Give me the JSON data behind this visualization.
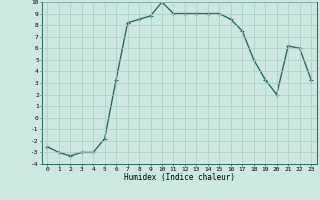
{
  "x": [
    0,
    1,
    2,
    3,
    4,
    5,
    6,
    7,
    8,
    9,
    10,
    11,
    12,
    13,
    14,
    15,
    16,
    17,
    18,
    19,
    20,
    21,
    22,
    23
  ],
  "y": [
    -2.5,
    -3,
    -3.3,
    -3,
    -3,
    -1.8,
    3.3,
    8.2,
    8.5,
    8.8,
    10,
    9,
    9,
    9,
    9,
    9,
    8.5,
    7.5,
    5,
    3.3,
    2,
    6.2,
    6,
    3.3
  ],
  "line_color": "#2d6b5e",
  "marker": "+",
  "marker_size": 3,
  "bg_color": "#cce8e0",
  "grid_color": "#aaccC4",
  "xlabel": "Humidex (Indice chaleur)",
  "ylim": [
    -4,
    10
  ],
  "xlim": [
    -0.5,
    23.5
  ],
  "yticks": [
    -4,
    -3,
    -2,
    -1,
    0,
    1,
    2,
    3,
    4,
    5,
    6,
    7,
    8,
    9,
    10
  ],
  "xticks": [
    0,
    1,
    2,
    3,
    4,
    5,
    6,
    7,
    8,
    9,
    10,
    11,
    12,
    13,
    14,
    15,
    16,
    17,
    18,
    19,
    20,
    21,
    22,
    23
  ],
  "linewidth": 1.0
}
